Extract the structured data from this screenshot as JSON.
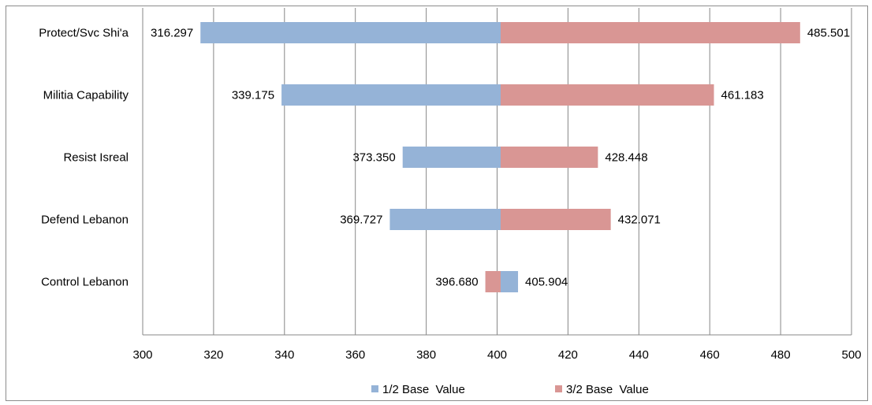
{
  "chart_data": {
    "type": "bar",
    "orientation": "horizontal-tornado",
    "title": "",
    "xlabel": "",
    "ylabel": "",
    "base_value": 401,
    "xlim": [
      300,
      500
    ],
    "xticks": [
      "300",
      "320",
      "340",
      "360",
      "380",
      "400",
      "420",
      "440",
      "460",
      "480",
      "500"
    ],
    "grid": true,
    "legend_position": "bottom",
    "categories": [
      "Protect/Svc Shi'a",
      "Militia Capability",
      "Resist Isreal",
      "Defend Lebanon",
      "Control Lebanon"
    ],
    "series": [
      {
        "name": "1/2 Base  Value",
        "color": "#95b3d7",
        "values": [
          316.297,
          339.175,
          373.35,
          369.727,
          405.904
        ],
        "labels": [
          "316.297",
          "339.175",
          "373.350",
          "369.727",
          "405.904"
        ]
      },
      {
        "name": "3/2 Base  Value",
        "color": "#d99694",
        "values": [
          485.501,
          461.183,
          428.448,
          432.071,
          396.68
        ],
        "labels": [
          "485.501",
          "461.183",
          "428.448",
          "432.071",
          "396.680"
        ]
      }
    ]
  }
}
